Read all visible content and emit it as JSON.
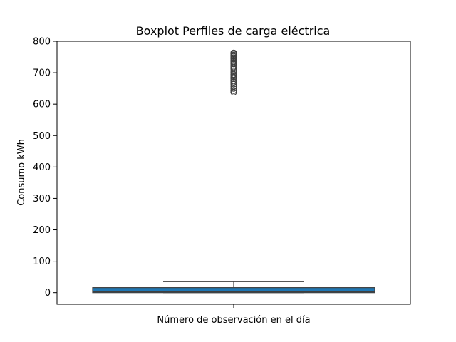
{
  "chart_data": {
    "type": "boxplot",
    "title": "Boxplot Perfiles de carga eléctrica",
    "xlabel": "Número de observación en el día",
    "ylabel": "Consumo kWh",
    "ylim": [
      -37,
      800
    ],
    "yticks": [
      0,
      100,
      200,
      300,
      400,
      500,
      600,
      700,
      800
    ],
    "grid": false,
    "legend": "none",
    "box": {
      "whisker_low": 0,
      "q1": 0,
      "median": 3,
      "q3": 16,
      "whisker_high": 35,
      "color": "#1f77b4"
    },
    "outliers": [
      638,
      643,
      650,
      657,
      664,
      670,
      676,
      681,
      686,
      690,
      694,
      700,
      706,
      712,
      718,
      723,
      728,
      732,
      736,
      740,
      744,
      748,
      752,
      756,
      760,
      763
    ]
  }
}
